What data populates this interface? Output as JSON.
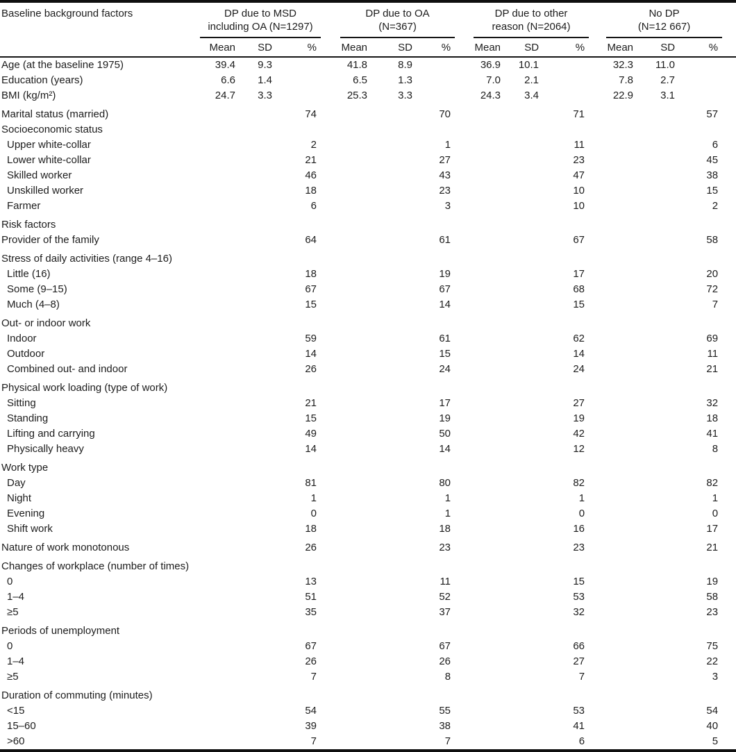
{
  "colors": {
    "background": "#ffffff",
    "text": "#1c1c1c",
    "rule": "#151515"
  },
  "table": {
    "label_column_header": "Baseline background factors",
    "groups": [
      {
        "line1": "DP due to MSD",
        "line2": "including OA (N=1297)"
      },
      {
        "line1": "DP due to OA",
        "line2": "(N=367)"
      },
      {
        "line1": "DP due to other",
        "line2": "reason (N=2064)"
      },
      {
        "line1": "No DP",
        "line2": "(N=12 667)"
      }
    ],
    "sub_columns": [
      "Mean",
      "SD",
      "%"
    ],
    "rows": [
      {
        "label": "Age (at the baseline 1975)",
        "v": [
          "39.4",
          "9.3",
          "",
          "41.8",
          "8.9",
          "",
          "36.9",
          "10.1",
          "",
          "32.3",
          "11.0",
          ""
        ]
      },
      {
        "label": "Education (years)",
        "v": [
          "6.6",
          "1.4",
          "",
          "6.5",
          "1.3",
          "",
          "7.0",
          "2.1",
          "",
          "7.8",
          "2.7",
          ""
        ]
      },
      {
        "label": "BMI (kg/m²)",
        "v": [
          "24.7",
          "3.3",
          "",
          "25.3",
          "3.3",
          "",
          "24.3",
          "3.4",
          "",
          "22.9",
          "3.1",
          ""
        ]
      },
      {
        "label": "Marital status (married)",
        "gap": true,
        "v": [
          "",
          "",
          "74",
          "",
          "",
          "70",
          "",
          "",
          "71",
          "",
          "",
          "57"
        ]
      },
      {
        "label": "Socioeconomic status"
      },
      {
        "label": "Upper white-collar",
        "indent": true,
        "v": [
          "",
          "",
          "2",
          "",
          "",
          "1",
          "",
          "",
          "11",
          "",
          "",
          "6"
        ]
      },
      {
        "label": "Lower white-collar",
        "indent": true,
        "v": [
          "",
          "",
          "21",
          "",
          "",
          "27",
          "",
          "",
          "23",
          "",
          "",
          "45"
        ]
      },
      {
        "label": "Skilled worker",
        "indent": true,
        "v": [
          "",
          "",
          "46",
          "",
          "",
          "43",
          "",
          "",
          "47",
          "",
          "",
          "38"
        ]
      },
      {
        "label": "Unskilled worker",
        "indent": true,
        "v": [
          "",
          "",
          "18",
          "",
          "",
          "23",
          "",
          "",
          "10",
          "",
          "",
          "15"
        ]
      },
      {
        "label": "Farmer",
        "indent": true,
        "v": [
          "",
          "",
          "6",
          "",
          "",
          "3",
          "",
          "",
          "10",
          "",
          "",
          "2"
        ]
      },
      {
        "label": "Risk factors",
        "gap": true
      },
      {
        "label": "Provider of the family",
        "v": [
          "",
          "",
          "64",
          "",
          "",
          "61",
          "",
          "",
          "67",
          "",
          "",
          "58"
        ]
      },
      {
        "label": "Stress of daily activities (range 4–16)",
        "gap": true
      },
      {
        "label": "Little (16)",
        "indent": true,
        "v": [
          "",
          "",
          "18",
          "",
          "",
          "19",
          "",
          "",
          "17",
          "",
          "",
          "20"
        ]
      },
      {
        "label": "Some (9–15)",
        "indent": true,
        "v": [
          "",
          "",
          "67",
          "",
          "",
          "67",
          "",
          "",
          "68",
          "",
          "",
          "72"
        ]
      },
      {
        "label": "Much (4–8)",
        "indent": true,
        "v": [
          "",
          "",
          "15",
          "",
          "",
          "14",
          "",
          "",
          "15",
          "",
          "",
          "7"
        ]
      },
      {
        "label": "Out- or indoor work",
        "gap": true
      },
      {
        "label": "Indoor",
        "indent": true,
        "v": [
          "",
          "",
          "59",
          "",
          "",
          "61",
          "",
          "",
          "62",
          "",
          "",
          "69"
        ]
      },
      {
        "label": "Outdoor",
        "indent": true,
        "v": [
          "",
          "",
          "14",
          "",
          "",
          "15",
          "",
          "",
          "14",
          "",
          "",
          "11"
        ]
      },
      {
        "label": "Combined out- and indoor",
        "indent": true,
        "v": [
          "",
          "",
          "26",
          "",
          "",
          "24",
          "",
          "",
          "24",
          "",
          "",
          "21"
        ]
      },
      {
        "label": "Physical work loading (type of work)",
        "gap": true
      },
      {
        "label": "Sitting",
        "indent": true,
        "v": [
          "",
          "",
          "21",
          "",
          "",
          "17",
          "",
          "",
          "27",
          "",
          "",
          "32"
        ]
      },
      {
        "label": "Standing",
        "indent": true,
        "v": [
          "",
          "",
          "15",
          "",
          "",
          "19",
          "",
          "",
          "19",
          "",
          "",
          "18"
        ]
      },
      {
        "label": "Lifting and carrying",
        "indent": true,
        "v": [
          "",
          "",
          "49",
          "",
          "",
          "50",
          "",
          "",
          "42",
          "",
          "",
          "41"
        ]
      },
      {
        "label": "Physically heavy",
        "indent": true,
        "v": [
          "",
          "",
          "14",
          "",
          "",
          "14",
          "",
          "",
          "12",
          "",
          "",
          "8"
        ]
      },
      {
        "label": "Work type",
        "gap": true
      },
      {
        "label": "Day",
        "indent": true,
        "v": [
          "",
          "",
          "81",
          "",
          "",
          "80",
          "",
          "",
          "82",
          "",
          "",
          "82"
        ]
      },
      {
        "label": "Night",
        "indent": true,
        "v": [
          "",
          "",
          "1",
          "",
          "",
          "1",
          "",
          "",
          "1",
          "",
          "",
          "1"
        ]
      },
      {
        "label": "Evening",
        "indent": true,
        "v": [
          "",
          "",
          "0",
          "",
          "",
          "1",
          "",
          "",
          "0",
          "",
          "",
          "0"
        ]
      },
      {
        "label": "Shift work",
        "indent": true,
        "v": [
          "",
          "",
          "18",
          "",
          "",
          "18",
          "",
          "",
          "16",
          "",
          "",
          "17"
        ]
      },
      {
        "label": "Nature of work monotonous",
        "gap": true,
        "v": [
          "",
          "",
          "26",
          "",
          "",
          "23",
          "",
          "",
          "23",
          "",
          "",
          "21"
        ]
      },
      {
        "label": "Changes of workplace (number of times)",
        "gap": true
      },
      {
        "label": "0",
        "indent": true,
        "v": [
          "",
          "",
          "13",
          "",
          "",
          "11",
          "",
          "",
          "15",
          "",
          "",
          "19"
        ]
      },
      {
        "label": "1–4",
        "indent": true,
        "v": [
          "",
          "",
          "51",
          "",
          "",
          "52",
          "",
          "",
          "53",
          "",
          "",
          "58"
        ]
      },
      {
        "label": "≥5",
        "indent": true,
        "v": [
          "",
          "",
          "35",
          "",
          "",
          "37",
          "",
          "",
          "32",
          "",
          "",
          "23"
        ]
      },
      {
        "label": "Periods of unemployment",
        "gap": true
      },
      {
        "label": "0",
        "indent": true,
        "v": [
          "",
          "",
          "67",
          "",
          "",
          "67",
          "",
          "",
          "66",
          "",
          "",
          "75"
        ]
      },
      {
        "label": "1–4",
        "indent": true,
        "v": [
          "",
          "",
          "26",
          "",
          "",
          "26",
          "",
          "",
          "27",
          "",
          "",
          "22"
        ]
      },
      {
        "label": "≥5",
        "indent": true,
        "v": [
          "",
          "",
          "7",
          "",
          "",
          "8",
          "",
          "",
          "7",
          "",
          "",
          "3"
        ]
      },
      {
        "label": "Duration of commuting  (minutes)",
        "gap": true
      },
      {
        "label": "<15",
        "indent": true,
        "v": [
          "",
          "",
          "54",
          "",
          "",
          "55",
          "",
          "",
          "53",
          "",
          "",
          "54"
        ]
      },
      {
        "label": "15–60",
        "indent": true,
        "v": [
          "",
          "",
          "39",
          "",
          "",
          "38",
          "",
          "",
          "41",
          "",
          "",
          "40"
        ]
      },
      {
        "label": ">60",
        "indent": true,
        "v": [
          "",
          "",
          "7",
          "",
          "",
          "7",
          "",
          "",
          "6",
          "",
          "",
          "5"
        ]
      }
    ]
  }
}
